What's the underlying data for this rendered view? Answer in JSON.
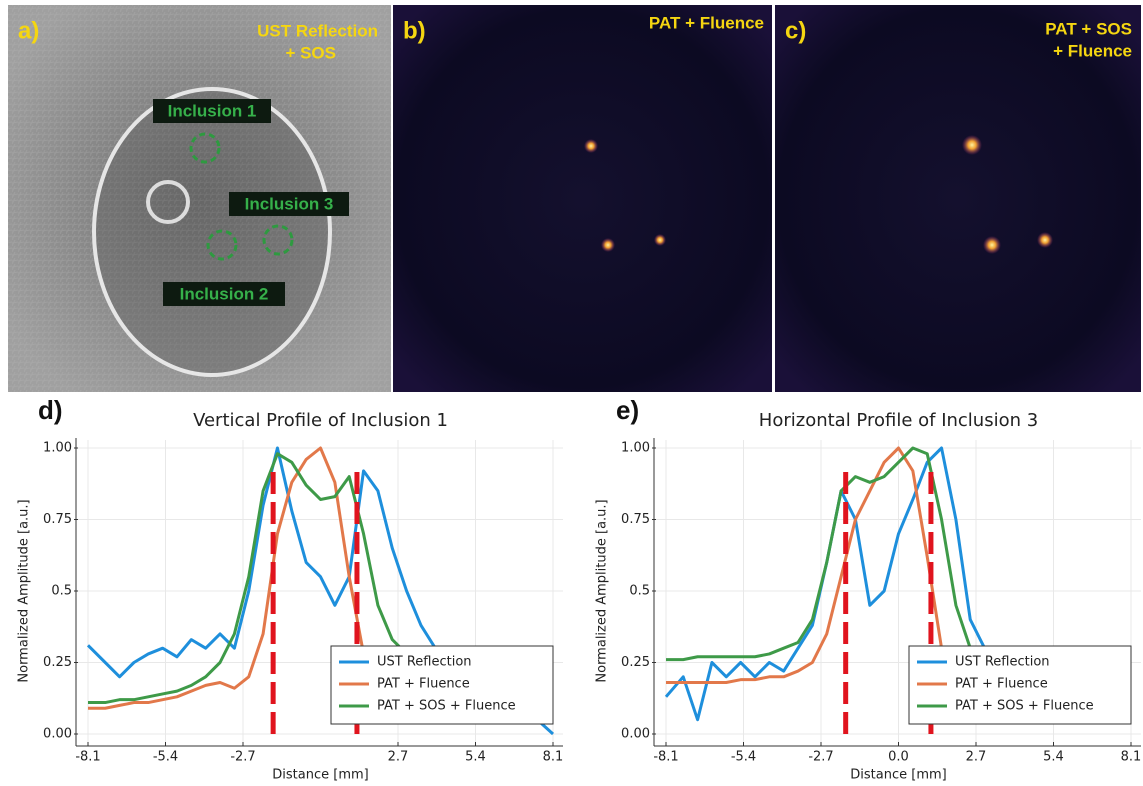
{
  "panels": [
    {
      "label": "a)",
      "title": [
        "UST Reflection",
        "+ SOS"
      ],
      "annotations": [
        "Inclusion 1",
        "Inclusion 3",
        "Inclusion 2"
      ]
    },
    {
      "label": "b)",
      "title": [
        "PAT + Fluence"
      ]
    },
    {
      "label": "c)",
      "title": [
        "PAT + SOS",
        "+ Fluence"
      ]
    }
  ],
  "chart_data": [
    {
      "type": "line",
      "panel_label": "d)",
      "title": "Vertical Profile of Inclusion 1",
      "x_label": "Distance [mm]",
      "y_label": "Normalized Amplitude [a.u.]",
      "x": [
        -8.1,
        -7.5,
        -7,
        -6.5,
        -6,
        -5.5,
        -5,
        -4.5,
        -4,
        -3.5,
        -3,
        -2.5,
        -2,
        -1.5,
        -1,
        -0.5,
        0,
        0.5,
        1,
        1.5,
        2,
        2.5,
        3,
        3.5,
        4,
        5,
        6,
        7,
        8.1
      ],
      "series": [
        {
          "name": "UST Reflection",
          "color": "#1e8fdc",
          "values": [
            0.31,
            0.25,
            0.2,
            0.25,
            0.28,
            0.3,
            0.27,
            0.33,
            0.3,
            0.35,
            0.3,
            0.5,
            0.8,
            1.0,
            0.78,
            0.6,
            0.55,
            0.45,
            0.55,
            0.92,
            0.85,
            0.65,
            0.5,
            0.38,
            0.3,
            0.25,
            0.18,
            0.1,
            0.0
          ]
        },
        {
          "name": "PAT + Fluence",
          "color": "#e2784a",
          "values": [
            0.09,
            0.09,
            0.1,
            0.11,
            0.11,
            0.12,
            0.13,
            0.15,
            0.17,
            0.18,
            0.16,
            0.2,
            0.35,
            0.7,
            0.88,
            0.96,
            1.0,
            0.88,
            0.55,
            0.28,
            0.2,
            0.17,
            0.16,
            0.15,
            0.15,
            0.14,
            0.13,
            0.12,
            0.12
          ]
        },
        {
          "name": "PAT + SOS + Fluence",
          "color": "#3e9a48",
          "values": [
            0.11,
            0.11,
            0.12,
            0.12,
            0.13,
            0.14,
            0.15,
            0.17,
            0.2,
            0.25,
            0.35,
            0.55,
            0.85,
            0.98,
            0.95,
            0.87,
            0.82,
            0.83,
            0.9,
            0.7,
            0.45,
            0.33,
            0.28,
            0.25,
            0.22,
            0.2,
            0.18,
            0.16,
            0.15
          ]
        }
      ],
      "vlines": [
        -1.65,
        1.27
      ],
      "vline_range": [
        0,
        0.92
      ],
      "xlim": [
        -8.1,
        8.1
      ],
      "xticks": [
        -8.1,
        -5.4,
        -2.7,
        2.7,
        5.4,
        8.1
      ],
      "ylim": [
        0,
        1
      ],
      "yticks": [
        {
          "value": 0,
          "label": "0.00"
        },
        0.25,
        0.5,
        0.75,
        {
          "value": 1,
          "label": "1.00"
        }
      ],
      "grid": true,
      "legend": "lower right"
    },
    {
      "type": "line",
      "panel_label": "e)",
      "title": "Horizontal Profile of Inclusion 3",
      "x_label": "Distance [mm]",
      "y_label": "Normalized Amplitude [a.u.]",
      "x": [
        -8.1,
        -7.5,
        -7,
        -6.5,
        -6,
        -5.5,
        -5,
        -4.5,
        -4,
        -3.5,
        -3,
        -2.5,
        -2,
        -1.5,
        -1,
        -0.5,
        0,
        0.5,
        1,
        1.5,
        2,
        2.5,
        3,
        3.5,
        4,
        5,
        6,
        7,
        8.1
      ],
      "series": [
        {
          "name": "UST Reflection",
          "color": "#1e8fdc",
          "values": [
            0.13,
            0.2,
            0.05,
            0.25,
            0.2,
            0.25,
            0.2,
            0.25,
            0.22,
            0.3,
            0.38,
            0.6,
            0.85,
            0.75,
            0.45,
            0.5,
            0.7,
            0.82,
            0.95,
            1.0,
            0.75,
            0.4,
            0.3,
            0.3,
            0.3,
            0.3,
            0.3,
            0.3,
            0.27
          ]
        },
        {
          "name": "PAT + Fluence",
          "color": "#e2784a",
          "values": [
            0.18,
            0.18,
            0.18,
            0.18,
            0.18,
            0.19,
            0.19,
            0.2,
            0.2,
            0.22,
            0.25,
            0.35,
            0.55,
            0.75,
            0.85,
            0.95,
            1.0,
            0.92,
            0.62,
            0.3,
            0.2,
            0.18,
            0.17,
            0.16,
            0.15,
            0.14,
            0.13,
            0.12,
            0.12
          ]
        },
        {
          "name": "PAT + SOS + Fluence",
          "color": "#3e9a48",
          "values": [
            0.26,
            0.26,
            0.27,
            0.27,
            0.27,
            0.27,
            0.27,
            0.28,
            0.3,
            0.32,
            0.4,
            0.6,
            0.85,
            0.9,
            0.88,
            0.9,
            0.95,
            1.0,
            0.98,
            0.75,
            0.45,
            0.3,
            0.25,
            0.22,
            0.2,
            0.18,
            0.16,
            0.14,
            0.12
          ]
        }
      ],
      "vlines": [
        -1.84,
        1.13
      ],
      "vline_range": [
        0,
        0.93
      ],
      "xlim": [
        -8.1,
        8.1
      ],
      "xticks": [
        -8.1,
        -5.4,
        -2.7,
        {
          "value": 0,
          "label": "0.0"
        },
        2.7,
        5.4,
        8.1
      ],
      "ylim": [
        0,
        1
      ],
      "yticks": [
        {
          "value": 0,
          "label": "0.00"
        },
        0.25,
        0.5,
        0.75,
        {
          "value": 1,
          "label": "1.00"
        }
      ],
      "grid": true,
      "legend": "lower right"
    }
  ]
}
